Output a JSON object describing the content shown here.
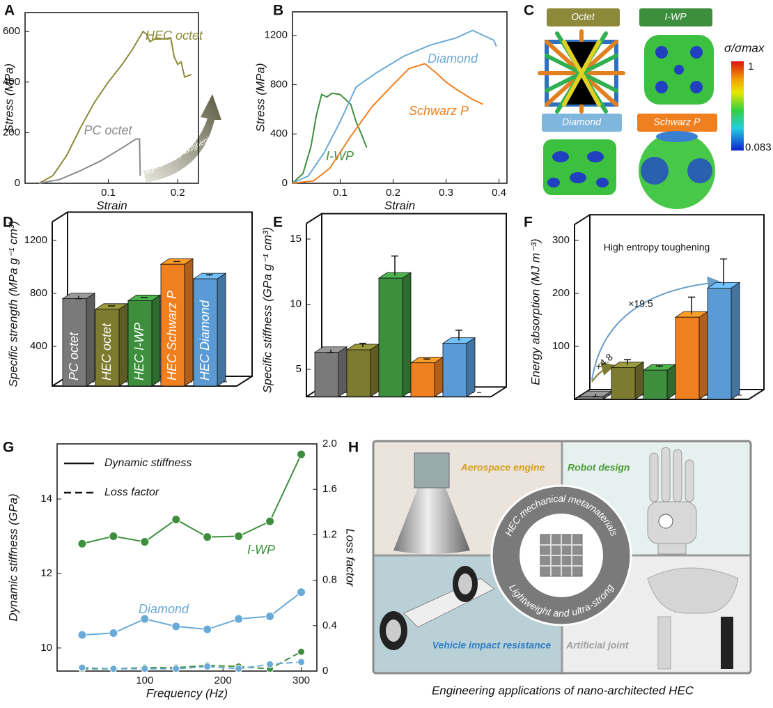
{
  "chart_data": [
    {
      "panel": "A",
      "type": "line",
      "xlabel": "Strain",
      "ylabel": "Stress (MPa)",
      "xlim": [
        -0.02,
        0.23
      ],
      "xticks": [
        0.1,
        0.2
      ],
      "ylim": [
        0,
        675
      ],
      "yticks": [
        0,
        200,
        400,
        600
      ],
      "annotations": [
        "High entropy toughening"
      ],
      "series": [
        {
          "name": "HEC octet",
          "color": "#8c8a3a",
          "x": [
            0,
            0.02,
            0.04,
            0.06,
            0.08,
            0.1,
            0.12,
            0.135,
            0.15,
            0.155,
            0.16,
            0.17,
            0.18,
            0.19,
            0.195,
            0.2,
            0.205,
            0.21,
            0.22
          ],
          "values": [
            0,
            30,
            110,
            220,
            320,
            400,
            470,
            530,
            600,
            590,
            560,
            575,
            570,
            575,
            500,
            470,
            480,
            420,
            430
          ]
        },
        {
          "name": "PC octet",
          "color": "#8a8a8a",
          "x": [
            0,
            0.03,
            0.06,
            0.09,
            0.12,
            0.14,
            0.145,
            0.146
          ],
          "values": [
            0,
            15,
            50,
            90,
            140,
            175,
            175,
            30
          ]
        }
      ]
    },
    {
      "panel": "B",
      "type": "line",
      "xlabel": "Strain",
      "ylabel": "Stress (MPa)",
      "xlim": [
        0.01,
        0.415
      ],
      "xticks": [
        0.1,
        0.2,
        0.3,
        0.4
      ],
      "ylim": [
        0,
        1390
      ],
      "yticks": [
        0,
        400,
        800,
        1200
      ],
      "series": [
        {
          "name": "I-WP",
          "color": "#3d8f3d",
          "x": [
            0.01,
            0.03,
            0.045,
            0.055,
            0.065,
            0.075,
            0.085,
            0.1,
            0.12,
            0.13,
            0.14,
            0.15
          ],
          "values": [
            0,
            80,
            300,
            550,
            720,
            700,
            730,
            720,
            640,
            500,
            400,
            290
          ]
        },
        {
          "name": "Diamond",
          "color": "#6aaad6",
          "x": [
            0.01,
            0.04,
            0.07,
            0.1,
            0.13,
            0.17,
            0.22,
            0.27,
            0.32,
            0.35,
            0.37,
            0.39,
            0.395
          ],
          "values": [
            0,
            60,
            250,
            500,
            780,
            900,
            1030,
            1120,
            1180,
            1240,
            1200,
            1160,
            1110
          ]
        },
        {
          "name": "Schwarz P",
          "color": "#f07f20",
          "x": [
            0.01,
            0.05,
            0.08,
            0.12,
            0.16,
            0.2,
            0.23,
            0.26,
            0.28,
            0.3,
            0.32,
            0.35,
            0.37
          ],
          "values": [
            0,
            20,
            120,
            380,
            620,
            800,
            930,
            970,
            900,
            820,
            760,
            680,
            640
          ]
        }
      ]
    },
    {
      "panel": "D",
      "type": "bar3d",
      "ylabel": "Specific strength (MPa g⁻¹ cm³)",
      "categories": [
        "PC octet",
        "HEC octet",
        "HEC I-WP",
        "HEC Schwarz P",
        "HEC Diamond"
      ],
      "colors": [
        "#7a7a7a",
        "#7d7b30",
        "#3d8f3d",
        "#f07f20",
        "#5b9bd5"
      ],
      "values": [
        760,
        680,
        745,
        1020,
        910
      ],
      "errors": [
        0,
        25,
        25,
        20,
        30
      ],
      "ylim": [
        100,
        1340
      ],
      "yticks": [
        400,
        800,
        1200
      ]
    },
    {
      "panel": "E",
      "type": "bar3d",
      "ylabel": "Specific stiffness (GPa g⁻¹ cm³)",
      "colors": [
        "#7a7a7a",
        "#7d7b30",
        "#3d8f3d",
        "#f07f20",
        "#5b9bd5"
      ],
      "values": [
        6.3,
        6.5,
        12,
        5.5,
        7
      ],
      "errors": [
        0,
        0.5,
        1.7,
        0.3,
        1
      ],
      "ylim": [
        2.9,
        16.2
      ],
      "yticks": [
        5,
        10,
        15
      ]
    },
    {
      "panel": "F",
      "type": "bar3d",
      "ylabel": "Energy absorption (MJ m⁻³)",
      "annotations": [
        "High entropy toughening",
        "×19.5",
        "×4.8"
      ],
      "colors": [
        "#7a7a7a",
        "#7d7b30",
        "#3d8f3d",
        "#f07f20",
        "#5b9bd5"
      ],
      "values": [
        5,
        60,
        55,
        155,
        210
      ],
      "errors": [
        0,
        15,
        8,
        38,
        55
      ],
      "ylim": [
        0,
        330
      ],
      "yticks": [
        100,
        200,
        300
      ]
    },
    {
      "panel": "G",
      "type": "dual_line",
      "xlabel": "Frequency (Hz)",
      "ylabel": "Dynamic stiffness (GPa)",
      "y2label": "Loss factor",
      "legend": [
        "Dynamic stiffness",
        "Loss factor"
      ],
      "x": [
        20,
        60,
        100,
        140,
        180,
        220,
        260,
        300
      ],
      "xlim": [
        -12,
        320
      ],
      "xticks": [
        100,
        200,
        300
      ],
      "ylim": [
        9.38,
        15.48
      ],
      "yticks": [
        10,
        12,
        14
      ],
      "y2lim": [
        0,
        2
      ],
      "y2ticks": [
        0,
        0.4,
        0.8,
        1.2,
        1.6,
        {
          "value": 2,
          "label": "2.0"
        }
      ],
      "series": [
        {
          "name": "I-WP",
          "color": "#3d8f3d",
          "line_style": "solid",
          "values": [
            12.8,
            13.0,
            12.85,
            13.45,
            12.98,
            13.0,
            13.4,
            15.2
          ]
        },
        {
          "name": "Diamond",
          "color": "#6aaad6",
          "line_style": "solid",
          "values": [
            10.35,
            10.4,
            10.78,
            10.58,
            10.5,
            10.78,
            10.85,
            11.5
          ]
        },
        {
          "color": "#3d8f3d",
          "line_style": "dashed",
          "axis": "y2",
          "values": [
            0.02,
            0.02,
            0.03,
            0.03,
            0.05,
            0.04,
            0.02,
            0.17
          ]
        },
        {
          "color": "#6aaad6",
          "line_style": "dashed",
          "axis": "y2",
          "values": [
            0.03,
            0.02,
            0.02,
            0.02,
            0.04,
            0.02,
            0.06,
            0.08
          ]
        }
      ]
    }
  ],
  "panel_c": {
    "panel": "C",
    "labels": [
      "Octet",
      "I-WP",
      "Diamond",
      "Schwarz P"
    ],
    "colorbar": {
      "title": "σ/σmax",
      "max": 1,
      "min": 0.083
    }
  },
  "panel_h": {
    "panel": "H",
    "quadrants": [
      "Aerospace engine",
      "Robot design",
      "Vehicle impact resistance",
      "Artificial joint"
    ],
    "ring_top": "HEC mechanical metamaterials",
    "ring_bottom": "Lightweight and ultra-strong",
    "caption": "Engineering applications of nano-architected HEC"
  }
}
